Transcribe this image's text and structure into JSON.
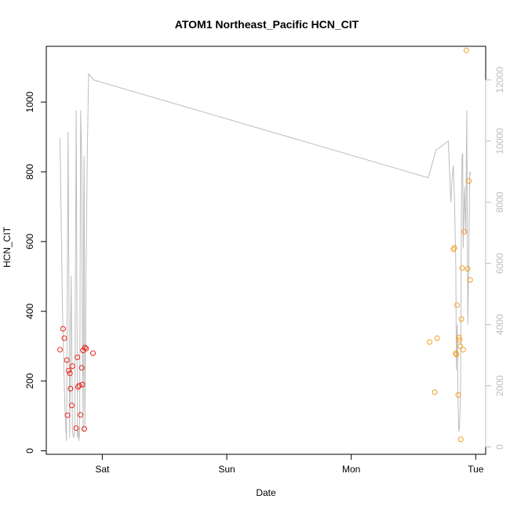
{
  "chart_data": {
    "type": "scatter",
    "title": "ATOM1 Northeast_Pacific HCN_CIT",
    "xlabel": "Date",
    "ylabel": "HCN_CIT",
    "x_ticks": [
      "Sat",
      "Sun",
      "Mon",
      "Tue"
    ],
    "x_tick_days": [
      1,
      2,
      3,
      4
    ],
    "xlim_days": [
      0.55,
      4.08
    ],
    "ylim": [
      -10,
      1160
    ],
    "y_ticks": [
      0,
      200,
      400,
      600,
      800,
      1000
    ],
    "y2lim": [
      -240,
      13100
    ],
    "y2_ticks": [
      0,
      2000,
      4000,
      6000,
      8000,
      10000,
      12000
    ],
    "grid": false,
    "colors": {
      "segment1": "#e8221c",
      "segment2": "#f29d22",
      "line": "#bdbdbd",
      "axis": "#000000",
      "axis2": "#bdbdbd"
    },
    "series": [
      {
        "color": "segment1",
        "x_days": [
          0.66,
          0.685,
          0.695,
          0.715,
          0.72,
          0.73,
          0.74,
          0.745,
          0.755,
          0.76,
          0.79,
          0.8,
          0.805,
          0.815,
          0.825,
          0.835,
          0.84,
          0.845,
          0.855,
          0.86,
          0.87,
          0.925
        ],
        "y": [
          290,
          350,
          323,
          260,
          102,
          230,
          222,
          178,
          130,
          243,
          65,
          268,
          183,
          187,
          103,
          238,
          190,
          288,
          63,
          296,
          293,
          280
        ]
      },
      {
        "color": "segment2",
        "x_days": [
          3.63,
          3.67,
          3.69,
          3.82,
          3.83,
          3.84,
          3.845,
          3.85,
          3.86,
          3.865,
          3.87,
          3.875,
          3.88,
          3.885,
          3.89,
          3.9,
          3.91,
          3.925,
          3.935,
          3.945,
          3.955
        ],
        "y": [
          312,
          168,
          323,
          578,
          582,
          280,
          276,
          418,
          160,
          325,
          318,
          300,
          33,
          378,
          524,
          290,
          628,
          1148,
          522,
          774,
          490
        ]
      }
    ],
    "line_series": {
      "axis": "right",
      "x_days": [
        0.66,
        0.68,
        0.7,
        0.712,
        0.725,
        0.738,
        0.75,
        0.76,
        0.768,
        0.778,
        0.79,
        0.8,
        0.806,
        0.812,
        0.818,
        0.826,
        0.834,
        0.84,
        0.846,
        0.85,
        0.854,
        0.86,
        0.87,
        0.88,
        0.89,
        0.91,
        0.93,
        3.62,
        3.68,
        3.78,
        3.79,
        3.8,
        3.81,
        3.82,
        3.83,
        3.84,
        3.845,
        3.852,
        3.858,
        3.864,
        3.87,
        3.878,
        3.885,
        3.89,
        3.895,
        3.9,
        3.91,
        3.92,
        3.928,
        3.936,
        3.944,
        3.952,
        3.96
      ],
      "y": [
        10100,
        4500,
        1200,
        200,
        10300,
        300,
        5600,
        600,
        300,
        500,
        11000,
        300,
        600,
        200,
        500,
        11000,
        9400,
        3500,
        500,
        8000,
        9500,
        600,
        6000,
        9800,
        12200,
        12100,
        12000,
        8800,
        9700,
        10000,
        9000,
        8000,
        8800,
        9200,
        8000,
        6000,
        2500,
        4000,
        1500,
        500,
        700,
        1800,
        8000,
        9500,
        9600,
        6500,
        8500,
        7000,
        11000,
        4000,
        6000,
        9000,
        8900
      ]
    }
  }
}
